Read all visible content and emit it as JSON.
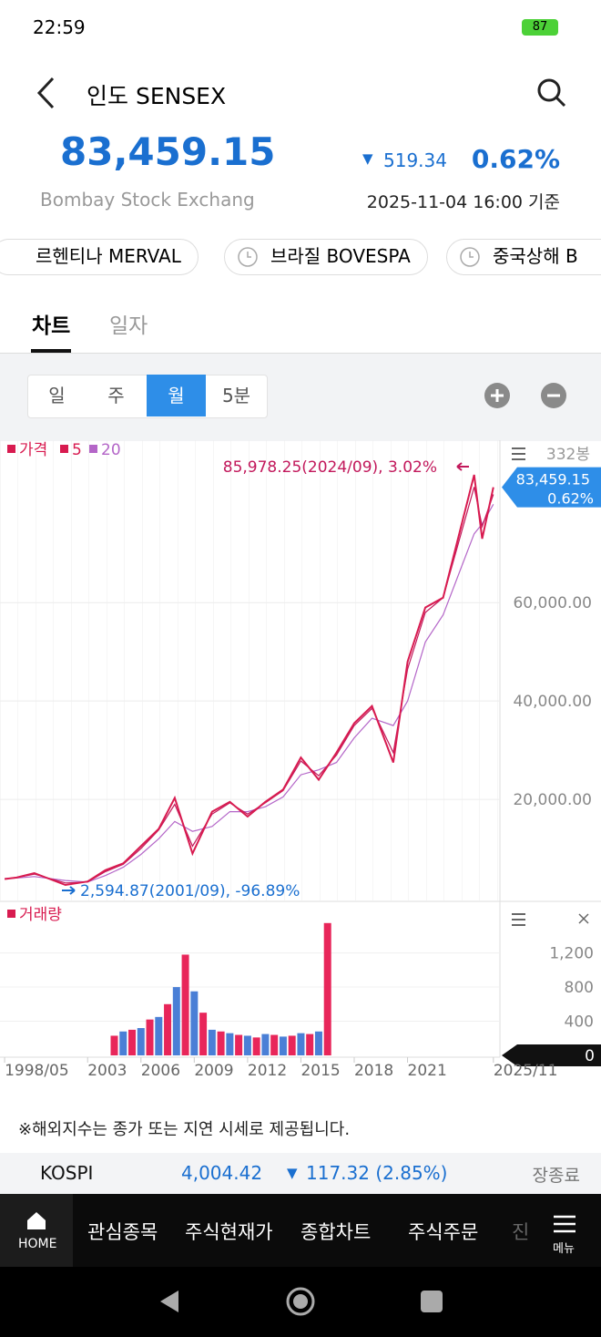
{
  "status_bar": {
    "time": "22:59",
    "battery": "87"
  },
  "header": {
    "title": "인도 SENSEX"
  },
  "quote": {
    "price": "83,459.15",
    "change": "519.34",
    "change_pct": "0.62%",
    "exchange": "Bombay Stock Exchang",
    "timestamp": "2025-11-04 16:00 기준"
  },
  "index_chips": [
    "르헨티나 MERVAL",
    "브라질 BOVESPA",
    "중국상해 B"
  ],
  "tabs": [
    "차트",
    "일자"
  ],
  "periods": [
    "일",
    "주",
    "월",
    "5분"
  ],
  "chart_data": [
    {
      "type": "line",
      "bar_count_label": "332봉",
      "annotations": [
        "85,978.25(2024/09), 3.02%",
        "2,594.87(2001/09), -96.89%"
      ],
      "x": [
        1998.33,
        1999,
        2000,
        2001.75,
        2003,
        2004,
        2005,
        2006,
        2007,
        2007.9,
        2008.9,
        2010,
        2011,
        2012,
        2013,
        2014,
        2015,
        2016,
        2017,
        2018,
        2019,
        2020.2,
        2021,
        2022,
        2023,
        2024.75,
        2025.2,
        2025.83
      ],
      "series": [
        {
          "name": "가격",
          "color": "#d81b50",
          "values": [
            3800,
            4100,
            5000,
            2594.87,
            3300,
            5600,
            7000,
            10500,
            14000,
            20300,
            9000,
            17500,
            19500,
            16500,
            19500,
            22000,
            28500,
            24000,
            29500,
            35500,
            39000,
            27500,
            48000,
            59000,
            61000,
            85978.25,
            73000,
            83459.15
          ]
        },
        {
          "name": "5",
          "color": "#c2185b",
          "values": [
            3850,
            4100,
            4800,
            3000,
            3200,
            5300,
            6800,
            10000,
            13800,
            19000,
            10500,
            17000,
            19300,
            17000,
            19300,
            21800,
            27800,
            24800,
            29000,
            35000,
            38500,
            29500,
            46500,
            58000,
            61000,
            83500,
            75500,
            82000
          ]
        },
        {
          "name": "20",
          "color": "#b466c8",
          "values": [
            3900,
            4000,
            4300,
            3500,
            3200,
            4500,
            6200,
            8800,
            12000,
            15500,
            13500,
            14500,
            17500,
            17500,
            18500,
            20500,
            25000,
            26000,
            27500,
            32500,
            36500,
            35000,
            40000,
            52000,
            57500,
            74000,
            76000,
            80000
          ]
        }
      ],
      "xlim": [
        1998.07,
        2026.3
      ],
      "ylim": [
        -550,
        92100
      ],
      "yticks": [
        {
          "value": 20000,
          "label": "20,000.00"
        },
        {
          "value": 40000,
          "label": "40,000.00"
        },
        {
          "value": 60000,
          "label": "60,000.00"
        }
      ]
    },
    {
      "type": "bar",
      "name": "거래량",
      "current_value": 0,
      "x": [
        2004.5,
        2005,
        2005.5,
        2006,
        2006.5,
        2007,
        2007.5,
        2008,
        2008.5,
        2009,
        2009.5,
        2010,
        2010.5,
        2011,
        2011.5,
        2012,
        2012.5,
        2013,
        2013.5,
        2014,
        2014.5,
        2015,
        2015.5,
        2016,
        2016.5
      ],
      "values": [
        230,
        280,
        300,
        320,
        420,
        450,
        600,
        800,
        1180,
        750,
        500,
        300,
        280,
        260,
        240,
        230,
        210,
        250,
        240,
        220,
        230,
        260,
        250,
        280,
        1550
      ],
      "colors": [
        "#e8265a",
        "#4a7fd6",
        "#e8265a",
        "#4a7fd6",
        "#e8265a",
        "#4a7fd6",
        "#e8265a",
        "#4a7fd6",
        "#e8265a",
        "#4a7fd6",
        "#e8265a",
        "#4a7fd6",
        "#e8265a",
        "#4a7fd6",
        "#e8265a",
        "#4a7fd6",
        "#e8265a",
        "#4a7fd6",
        "#e8265a",
        "#4a7fd6",
        "#e8265a",
        "#4a7fd6",
        "#e8265a",
        "#4a7fd6",
        "#e8265a"
      ],
      "xlim": [
        1998.07,
        2026.3
      ],
      "ylim": [
        0,
        1740
      ],
      "yticks": [
        400,
        800,
        {
          "value": 1200,
          "label": "1,200"
        }
      ],
      "xticks": [
        {
          "value": 1998.33,
          "label": "1998/05"
        },
        2003,
        2006,
        2009,
        2012,
        2015,
        2018,
        2021,
        {
          "value": 2025.83,
          "label": "2025/11"
        }
      ]
    }
  ],
  "footer_note": "※해외지수는 종가 또는 지연 시세로 제공됩니다.",
  "ticker": {
    "name": "KOSPI",
    "price": "4,004.42",
    "change": "117.32 (2.85%)",
    "status": "장종료"
  },
  "nav": {
    "home": "HOME",
    "items": [
      "관심종목",
      "주식현재가",
      "종합차트",
      "주식주문",
      "진"
    ],
    "menu": "메뉴"
  }
}
